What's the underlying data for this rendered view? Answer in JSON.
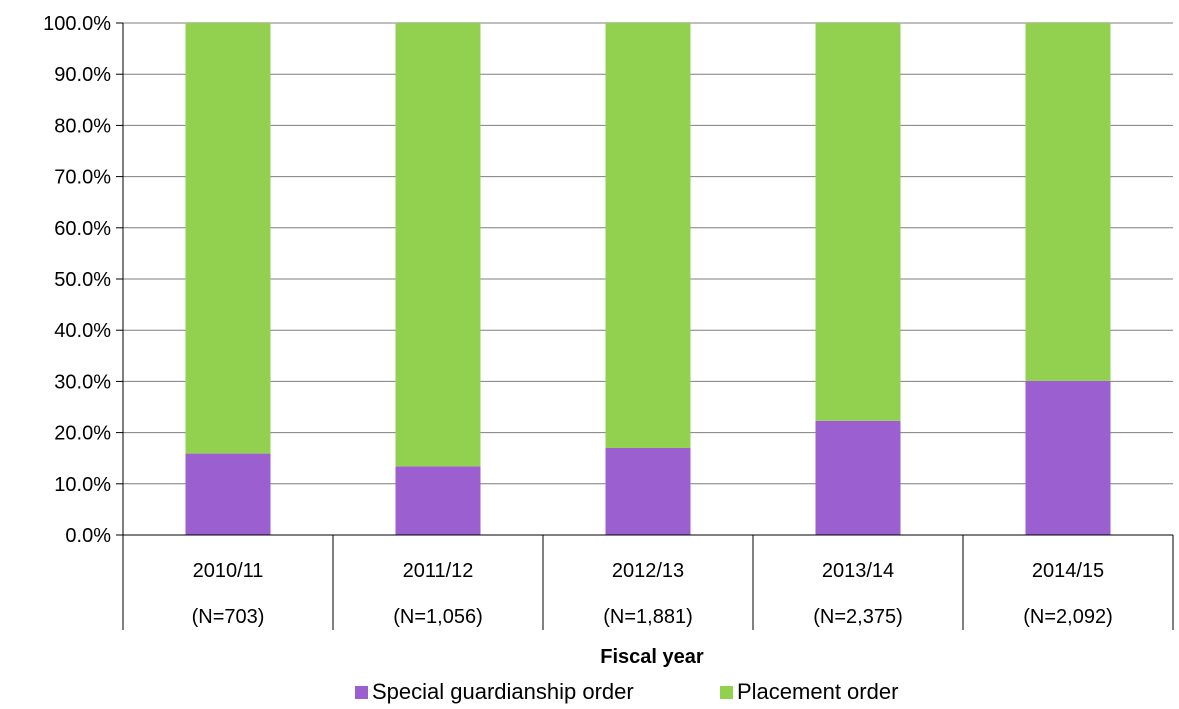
{
  "chart_data": {
    "type": "bar",
    "stacked": true,
    "percent": true,
    "title": "",
    "xlabel": "Fiscal year",
    "ylabel": "",
    "ylim": [
      0,
      100
    ],
    "y_ticks": [
      "0.0%",
      "10.0%",
      "20.0%",
      "30.0%",
      "40.0%",
      "50.0%",
      "60.0%",
      "70.0%",
      "80.0%",
      "90.0%",
      "100.0%"
    ],
    "grid": true,
    "legend_position": "bottom",
    "categories": [
      "2010/11",
      "2011/12",
      "2012/13",
      "2013/14",
      "2014/15"
    ],
    "category_sublabels": [
      "(N=703)",
      "(N=1,056)",
      "(N=1,881)",
      "(N=2,375)",
      "(N=2,092)"
    ],
    "series": [
      {
        "name": "Special guardianship order",
        "color": "#9b5fcf",
        "values": [
          15.9,
          13.4,
          17.0,
          22.3,
          30.1
        ]
      },
      {
        "name": "Placement order",
        "color": "#92d050",
        "values": [
          84.1,
          86.6,
          83.0,
          77.7,
          69.9
        ]
      }
    ]
  }
}
